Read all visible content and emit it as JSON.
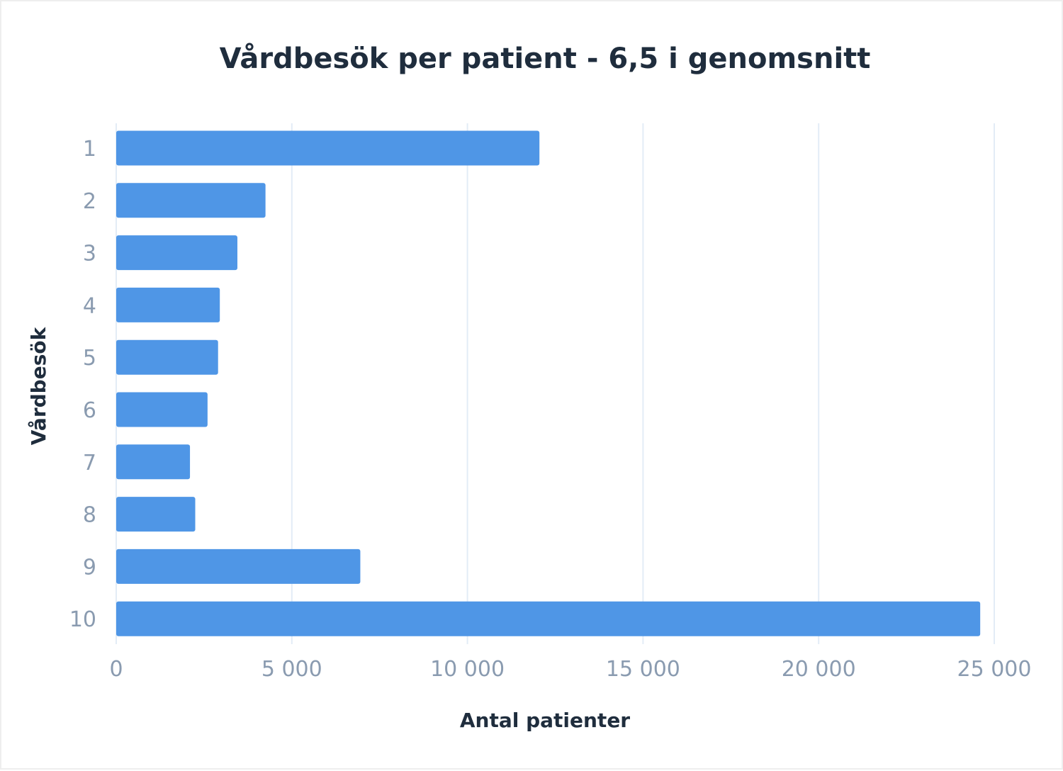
{
  "chart_data": {
    "type": "bar",
    "orientation": "horizontal",
    "title": "Vårdbesök per patient - 6,5 i genomsnitt",
    "xlabel": "Antal patienter",
    "ylabel": "Vårdbesök",
    "categories": [
      "1",
      "2",
      "3",
      "4",
      "5",
      "6",
      "7",
      "8",
      "9",
      "10"
    ],
    "values": [
      12050,
      4250,
      3450,
      2950,
      2900,
      2600,
      2100,
      2250,
      6950,
      24600
    ],
    "xlim": [
      0,
      25000
    ],
    "xticks": [
      0,
      5000,
      10000,
      15000,
      20000,
      25000
    ],
    "xtick_labels": [
      "0",
      "5 000",
      "10 000",
      "15 000",
      "20 000",
      "25 000"
    ],
    "grid": "vertical",
    "legend": "none",
    "bar_color": "#4f96e6",
    "grid_color": "#e3ecf6",
    "tick_color": "#8a9bb0",
    "title_color": "#1f2d3d"
  }
}
